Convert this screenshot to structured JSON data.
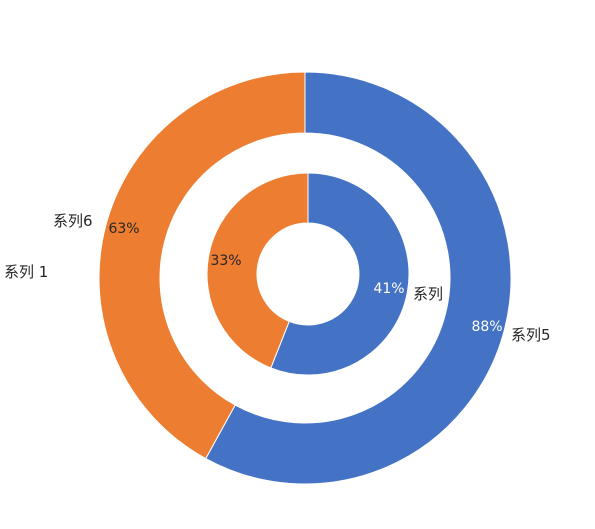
{
  "chart_data": {
    "type": "doughnut",
    "rings": [
      {
        "ring": "outer",
        "slices": [
          {
            "name": "系列5",
            "percent_label": "88%",
            "share": 0.58,
            "color": "#4472C4"
          },
          {
            "name": "系列6",
            "percent_label": "63%",
            "share": 0.42,
            "color": "#ED7D31"
          }
        ]
      },
      {
        "ring": "inner",
        "slices": [
          {
            "name": "系列",
            "percent_label": "41%",
            "share": 0.56,
            "color": "#4472C4"
          },
          {
            "name": "系列 1",
            "percent_label": "33%",
            "share": 0.44,
            "color": "#ED7D31"
          }
        ]
      }
    ],
    "start_angle": "12 o'clock",
    "direction": "clockwise"
  }
}
